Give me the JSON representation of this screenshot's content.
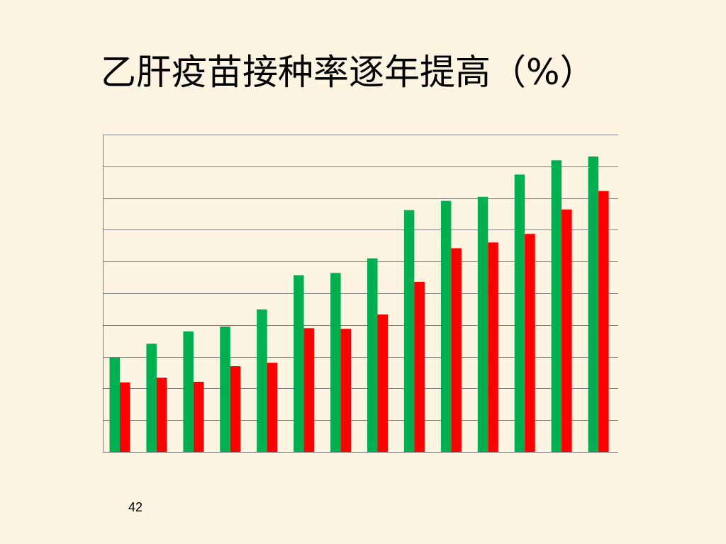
{
  "slide": {
    "title": "乙肝疫苗接种率逐年提高（%）",
    "page_number": "42"
  },
  "colors": {
    "background": "#FDF5E1",
    "series_green": "#00B050",
    "series_red": "#FF0000",
    "gridline": "#7F7F7F"
  },
  "chart_data": {
    "type": "bar",
    "title": "乙肝疫苗接种率逐年提高（%）",
    "grid": true,
    "gridline_count": 10,
    "ylim": [
      0,
      100
    ],
    "categories": [
      "",
      "",
      "",
      "",
      "",
      "",
      "",
      "",
      "",
      "",
      "",
      "",
      "",
      ""
    ],
    "series": [
      {
        "color": "#00B050",
        "values": [
          29.7,
          34.1,
          38.0,
          39.5,
          44.9,
          55.7,
          56.4,
          61.0,
          76.2,
          79.1,
          80.4,
          87.4,
          91.9,
          93.1
        ]
      },
      {
        "color": "#FF0000",
        "values": [
          21.9,
          23.4,
          22.1,
          27.0,
          28.1,
          39.0,
          38.8,
          43.3,
          53.6,
          64.2,
          66.0,
          68.7,
          76.4,
          82.2
        ]
      }
    ]
  }
}
